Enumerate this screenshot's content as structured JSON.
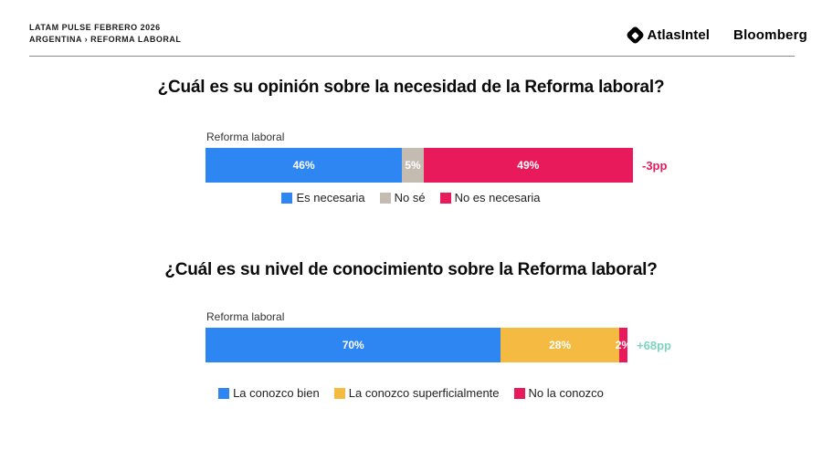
{
  "header": {
    "kicker_line1": "LATAM PULSE FEBRERO 2026",
    "kicker_line2": "ARGENTINA › REFORMA LABORAL",
    "brand_atlas": "AtlasIntel",
    "brand_bloomberg": "Bloomberg"
  },
  "chart_data": [
    {
      "type": "bar",
      "orientation": "horizontal",
      "stacked": true,
      "title": "¿Cuál es su opinión sobre la necesidad de la Reforma laboral?",
      "categories": [
        "Reforma laboral"
      ],
      "xlim": [
        0,
        100
      ],
      "legend_position": "bottom",
      "series": [
        {
          "name": "Es necesaria",
          "values": [
            46
          ],
          "label": "46%",
          "color": "#2E86F2"
        },
        {
          "name": "No sé",
          "values": [
            5
          ],
          "label": "5%",
          "color": "#C4BBB1"
        },
        {
          "name": "No es necesaria",
          "values": [
            49
          ],
          "label": "49%",
          "color": "#E91A5C"
        }
      ],
      "annotation": "-3pp",
      "annotation_color": "#E91A5C"
    },
    {
      "type": "bar",
      "orientation": "horizontal",
      "stacked": true,
      "title": "¿Cuál es su nivel de conocimiento sobre la Reforma laboral?",
      "categories": [
        "Reforma laboral"
      ],
      "xlim": [
        0,
        100
      ],
      "legend_position": "bottom",
      "series": [
        {
          "name": "La conozco bien",
          "values": [
            70
          ],
          "label": "70%",
          "color": "#2E86F2"
        },
        {
          "name": "La conozco superficialmente",
          "values": [
            28
          ],
          "label": "28%",
          "color": "#F5BA41"
        },
        {
          "name": "No la conozco",
          "values": [
            2
          ],
          "label": "2%",
          "color": "#E91A5C"
        }
      ],
      "annotation": "+68pp",
      "annotation_color": "#7ED3C1"
    }
  ]
}
